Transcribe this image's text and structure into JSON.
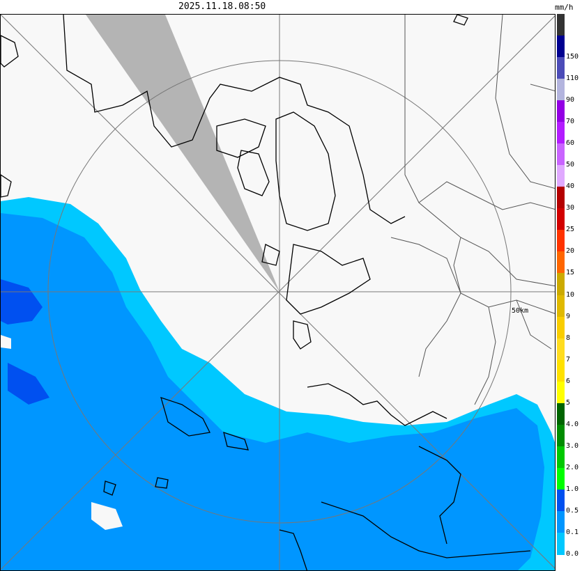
{
  "header": {
    "timestamp": "2025.11.18.08:50",
    "unit": "mm/h"
  },
  "map": {
    "range_ring_label": "50km",
    "colors": {
      "background": "#f8f8f8",
      "beam_blockage": "#b4b4b4",
      "rain_light": "#00c8ff",
      "rain_medium": "#0096ff",
      "rain_heavy": "#0050f0",
      "coastline": "#000000",
      "admin_border": "#555555",
      "grid": "#777777"
    }
  },
  "legend": {
    "items": [
      {
        "label": "",
        "color": "#333333"
      },
      {
        "label": "150",
        "color": "#000090"
      },
      {
        "label": "110",
        "color": "#4c4cb8"
      },
      {
        "label": "90",
        "color": "#b3b4de"
      },
      {
        "label": "70",
        "color": "#9300e4"
      },
      {
        "label": "60",
        "color": "#b31cff"
      },
      {
        "label": "50",
        "color": "#c964ff"
      },
      {
        "label": "40",
        "color": "#e0a9ff"
      },
      {
        "label": "30",
        "color": "#b40000"
      },
      {
        "label": "25",
        "color": "#d20000"
      },
      {
        "label": "20",
        "color": "#ff3300"
      },
      {
        "label": "15",
        "color": "#ff6600"
      },
      {
        "label": "10",
        "color": "#ccaa00"
      },
      {
        "label": "9",
        "color": "#e0b900"
      },
      {
        "label": "8",
        "color": "#f9cd00"
      },
      {
        "label": "7",
        "color": "#ffdc1f"
      },
      {
        "label": "6",
        "color": "#ffe100"
      },
      {
        "label": "5",
        "color": "#ffff00"
      },
      {
        "label": "4.0",
        "color": "#006400"
      },
      {
        "label": "3.0",
        "color": "#008c00"
      },
      {
        "label": "2.0",
        "color": "#00c800"
      },
      {
        "label": "1.0",
        "color": "#00ff00"
      },
      {
        "label": "0.5",
        "color": "#0050f0"
      },
      {
        "label": "0.1",
        "color": "#0096ff"
      },
      {
        "label": "0.0",
        "color": "#00c8ff"
      }
    ]
  }
}
